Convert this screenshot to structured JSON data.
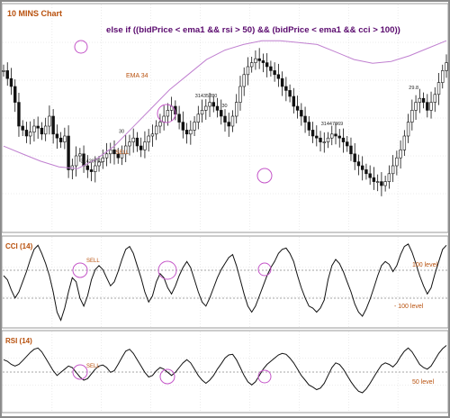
{
  "colors": {
    "border": "#8a8a8a",
    "title": "#b8500c",
    "formula": "#5a0a6e",
    "ema": "#c080d0",
    "candle": "#111111",
    "circle": "#c455c8",
    "sell": "#b8500c",
    "level_line": "#888888",
    "indicator": "#111111"
  },
  "chart_data": [
    {
      "type": "candlestick",
      "title": "10 MINS Chart",
      "annotation": "else  if ((bidPrice < ema1 && rsi > 50) && (bidPrice < ema1 && cci > 100))",
      "grid": true,
      "ema": {
        "name": "EMA 34",
        "values": [
          0.42,
          0.38,
          0.34,
          0.31,
          0.3,
          0.35,
          0.42,
          0.52,
          0.62,
          0.72,
          0.8,
          0.88,
          0.93,
          0.96,
          0.98,
          0.98,
          0.97,
          0.96,
          0.92,
          0.88,
          0.86,
          0.87,
          0.9,
          0.94,
          0.98
        ]
      },
      "price_close": [
        0.78,
        0.74,
        0.7,
        0.62,
        0.5,
        0.48,
        0.45,
        0.47,
        0.5,
        0.49,
        0.46,
        0.5,
        0.55,
        0.46,
        0.44,
        0.42,
        0.45,
        0.28,
        0.3,
        0.35,
        0.36,
        0.3,
        0.28,
        0.27,
        0.3,
        0.32,
        0.34,
        0.36,
        0.38,
        0.36,
        0.34,
        0.36,
        0.4,
        0.42,
        0.44,
        0.4,
        0.38,
        0.42,
        0.45,
        0.46,
        0.5,
        0.52,
        0.55,
        0.58,
        0.6,
        0.56,
        0.52,
        0.48,
        0.46,
        0.48,
        0.52,
        0.56,
        0.58,
        0.6,
        0.62,
        0.6,
        0.58,
        0.55,
        0.52,
        0.5,
        0.55,
        0.62,
        0.7,
        0.76,
        0.8,
        0.82,
        0.84,
        0.83,
        0.82,
        0.8,
        0.78,
        0.76,
        0.74,
        0.7,
        0.68,
        0.65,
        0.6,
        0.58,
        0.55,
        0.52,
        0.48,
        0.45,
        0.44,
        0.42,
        0.42,
        0.44,
        0.46,
        0.45,
        0.44,
        0.42,
        0.4,
        0.36,
        0.32,
        0.3,
        0.28,
        0.26,
        0.24,
        0.22,
        0.22,
        0.2,
        0.22,
        0.26,
        0.3,
        0.34,
        0.38,
        0.45,
        0.52,
        0.58,
        0.62,
        0.64,
        0.62,
        0.58,
        0.62,
        0.66,
        0.72,
        0.78,
        0.82
      ],
      "labels": [
        {
          "text": "31420751",
          "index": 7
        },
        {
          "text": "SELL",
          "index": 8
        },
        {
          "text": "30",
          "index": 10
        },
        {
          "text": "31435280",
          "index": 16
        },
        {
          "text": "30",
          "index": 18
        },
        {
          "text": "31447869",
          "index": 26
        },
        {
          "text": "29.8",
          "index": 33
        }
      ]
    },
    {
      "type": "line",
      "title": "CCI (14)",
      "levels": [
        {
          "label": "100 level"
        },
        {
          "label": "- 100 level"
        }
      ],
      "signal_label": "SELL",
      "values": [
        0.2,
        0.1,
        -0.15,
        -0.35,
        -0.2,
        0.05,
        0.3,
        0.6,
        0.85,
        0.95,
        0.75,
        0.5,
        0.2,
        -0.2,
        -0.7,
        -0.9,
        -0.6,
        -0.2,
        0.15,
        0.05,
        -0.35,
        -0.55,
        -0.3,
        0.1,
        0.35,
        0.45,
        0.35,
        0.15,
        -0.05,
        0.05,
        0.3,
        0.6,
        0.85,
        0.92,
        0.75,
        0.45,
        0.15,
        -0.2,
        -0.45,
        -0.3,
        0.05,
        0.25,
        0.15,
        -0.1,
        -0.25,
        -0.05,
        0.2,
        0.4,
        0.55,
        0.4,
        0.1,
        -0.2,
        -0.45,
        -0.55,
        -0.35,
        -0.1,
        0.15,
        0.35,
        0.5,
        0.65,
        0.72,
        0.45,
        0.1,
        -0.25,
        -0.55,
        -0.7,
        -0.55,
        -0.3,
        -0.05,
        0.2,
        0.4,
        0.55,
        0.75,
        0.85,
        0.88,
        0.75,
        0.55,
        0.2,
        -0.1,
        -0.35,
        -0.55,
        -0.6,
        -0.7,
        -0.6,
        -0.4,
        0.1,
        0.45,
        0.6,
        0.5,
        0.3,
        0.05,
        -0.2,
        -0.5,
        -0.7,
        -0.8,
        -0.62,
        -0.38,
        -0.1,
        0.2,
        0.45,
        0.55,
        0.48,
        0.3,
        0.45,
        0.72,
        0.92,
        0.98,
        0.78,
        0.5,
        0.2,
        -0.05,
        -0.25,
        -0.1,
        0.25,
        0.55,
        0.85,
        0.95
      ]
    },
    {
      "type": "line",
      "title": "RSI (14)",
      "levels": [
        {
          "label": "50 level"
        }
      ],
      "signal_label": "SELL",
      "values": [
        0.45,
        0.4,
        0.3,
        0.25,
        0.3,
        0.42,
        0.55,
        0.68,
        0.78,
        0.82,
        0.7,
        0.5,
        0.3,
        0.1,
        -0.05,
        0.05,
        0.15,
        0.25,
        0.2,
        0.05,
        -0.1,
        -0.2,
        -0.15,
        0.0,
        0.15,
        0.25,
        0.28,
        0.2,
        0.05,
        0.1,
        0.3,
        0.52,
        0.72,
        0.78,
        0.65,
        0.45,
        0.25,
        0.05,
        -0.1,
        -0.05,
        0.1,
        0.2,
        0.15,
        0.05,
        -0.05,
        0.05,
        0.2,
        0.35,
        0.45,
        0.35,
        0.15,
        -0.05,
        -0.2,
        -0.3,
        -0.2,
        -0.05,
        0.15,
        0.32,
        0.5,
        0.6,
        0.62,
        0.45,
        0.2,
        -0.05,
        -0.25,
        -0.35,
        -0.25,
        -0.05,
        0.15,
        0.3,
        0.4,
        0.5,
        0.6,
        0.65,
        0.62,
        0.5,
        0.35,
        0.15,
        -0.05,
        -0.2,
        -0.35,
        -0.42,
        -0.5,
        -0.45,
        -0.3,
        -0.05,
        0.2,
        0.35,
        0.3,
        0.15,
        -0.05,
        -0.25,
        -0.42,
        -0.55,
        -0.6,
        -0.48,
        -0.3,
        -0.1,
        0.1,
        0.28,
        0.35,
        0.3,
        0.22,
        0.35,
        0.55,
        0.72,
        0.82,
        0.7,
        0.5,
        0.3,
        0.2,
        0.15,
        0.25,
        0.45,
        0.65,
        0.8,
        0.9
      ]
    }
  ]
}
